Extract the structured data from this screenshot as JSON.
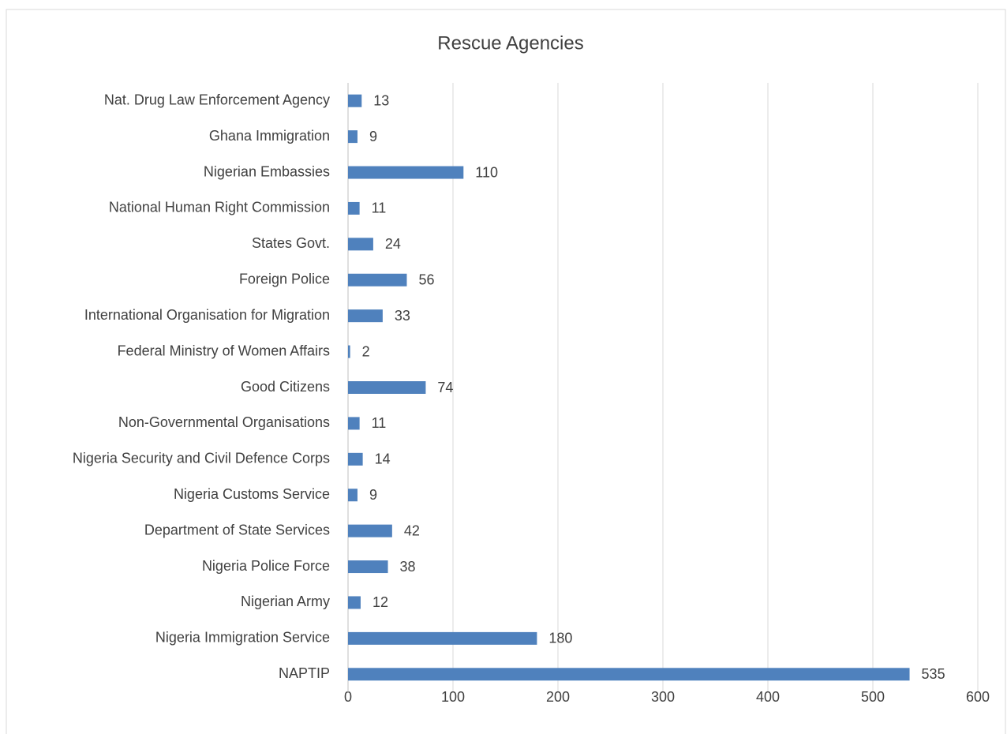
{
  "chart_data": {
    "type": "barh",
    "title": "Rescue Agencies",
    "categories": [
      "Nat. Drug Law Enforcement Agency",
      "Ghana Immigration",
      "Nigerian Embassies",
      "National Human Right Commission",
      "States Govt.",
      "Foreign Police",
      "International Organisation for Migration",
      "Federal Ministry of Women Affairs",
      "Good Citizens",
      "Non-Governmental Organisations",
      "Nigeria Security and Civil Defence Corps",
      "Nigeria Customs Service",
      "Department of State Services",
      "Nigeria Police Force",
      "Nigerian Army",
      "Nigeria Immigration Service",
      "NAPTIP"
    ],
    "values": [
      13,
      9,
      110,
      11,
      24,
      56,
      33,
      2,
      74,
      11,
      14,
      9,
      42,
      38,
      12,
      180,
      535
    ],
    "color": "#4f81bd",
    "xlim": [
      0,
      600
    ],
    "xticks": [
      0,
      100,
      200,
      300,
      400,
      500,
      600
    ],
    "grid": true
  }
}
